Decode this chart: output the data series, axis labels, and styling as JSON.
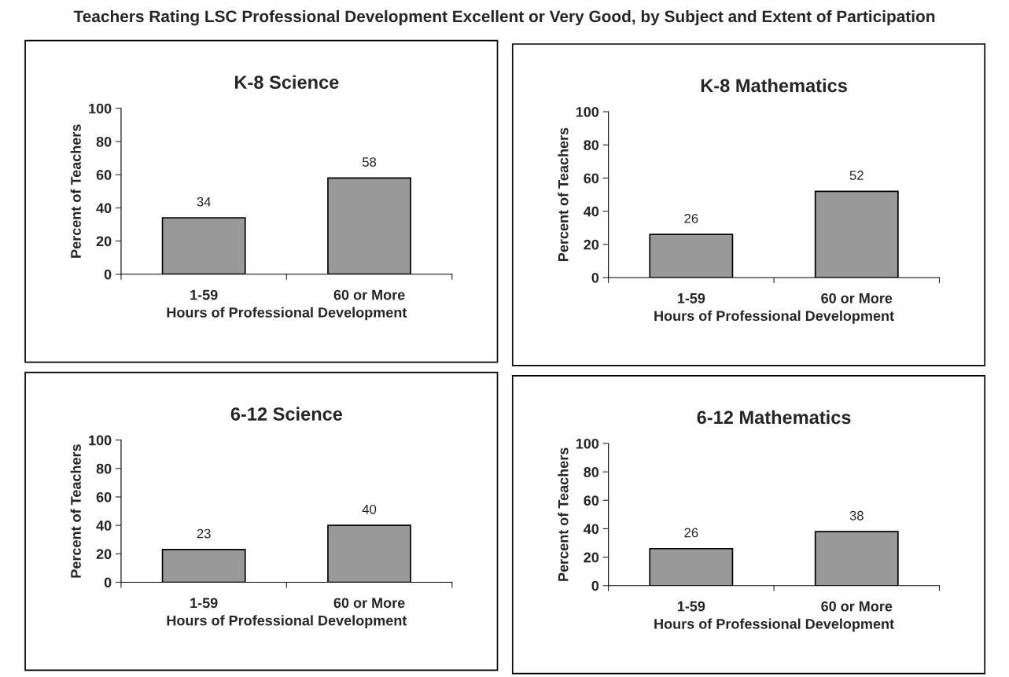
{
  "chart_data": [
    {
      "type": "bar",
      "title": "K-8 Science",
      "annotations": [
        "Teachers Rating LSC Professional Development Excellent or Very Good, by Subject and Extent of Participation"
      ],
      "xlabel": "Hours of Professional Development",
      "ylabel": "Percent of Teachers",
      "categories": [
        "1-59",
        "60 or More"
      ],
      "values": [
        34,
        58
      ],
      "color": "#999999",
      "ylim": [
        0,
        100
      ],
      "yticks": [
        0,
        20,
        40,
        60,
        80,
        100
      ],
      "data_labels": true
    },
    {
      "type": "bar",
      "title": "K-8 Mathematics",
      "xlabel": "Hours of Professional Development",
      "ylabel": "Percent of Teachers",
      "categories": [
        "1-59",
        "60 or More"
      ],
      "values": [
        26,
        52
      ],
      "color": "#999999",
      "ylim": [
        0,
        100
      ],
      "yticks": [
        0,
        20,
        40,
        60,
        80,
        100
      ],
      "data_labels": true
    },
    {
      "type": "bar",
      "title": "6-12 Science",
      "xlabel": "Hours of Professional Development",
      "ylabel": "Percent of Teachers",
      "categories": [
        "1-59",
        "60 or More"
      ],
      "values": [
        23,
        40
      ],
      "color": "#999999",
      "ylim": [
        0,
        100
      ],
      "yticks": [
        0,
        20,
        40,
        60,
        80,
        100
      ],
      "data_labels": true
    },
    {
      "type": "bar",
      "title": "6-12 Mathematics",
      "xlabel": "Hours of Professional Development",
      "ylabel": "Percent of Teachers",
      "categories": [
        "1-59",
        "60 or More"
      ],
      "values": [
        26,
        38
      ],
      "color": "#999999",
      "ylim": [
        0,
        100
      ],
      "yticks": [
        0,
        20,
        40,
        60,
        80,
        100
      ],
      "data_labels": true
    }
  ]
}
